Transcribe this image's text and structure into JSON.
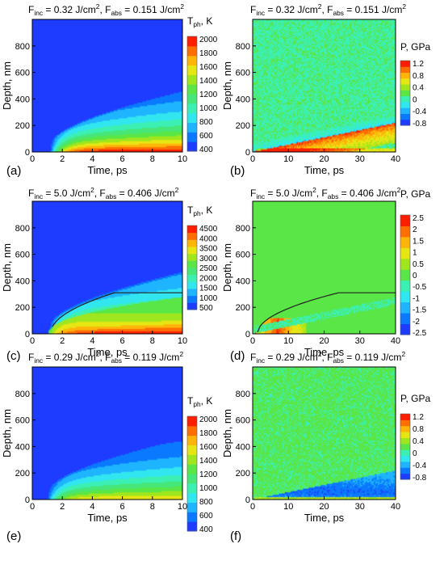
{
  "chart_data": [
    {
      "id": "a",
      "type": "heatmap",
      "panel_label": "(a)",
      "title": {
        "parts": [
          [
            "F",
            ""
          ],
          [
            "inc",
            "sub"
          ],
          [
            " = 0.32 J/cm",
            ""
          ],
          [
            "2",
            "sup"
          ],
          [
            ", F",
            ""
          ],
          [
            "abs",
            "sub"
          ],
          [
            " = 0.151 J/cm",
            ""
          ],
          [
            "2",
            "sup"
          ]
        ]
      },
      "xlabel": "Time, ps",
      "ylabel": "Depth, nm",
      "xlim": [
        0,
        10
      ],
      "ylim": [
        0,
        1000
      ],
      "xticks": [
        0,
        2,
        4,
        6,
        8,
        10
      ],
      "yticks": [
        0,
        200,
        400,
        600,
        800
      ],
      "colorbar": {
        "title": {
          "parts": [
            [
              "T",
              ""
            ],
            [
              "ph",
              "sub"
            ],
            [
              ", K",
              ""
            ]
          ]
        },
        "ticks": [
          "2000",
          "1800",
          "1600",
          "1400",
          "1200",
          "1000",
          "800",
          "600",
          "400"
        ],
        "colors": [
          "#1e3cff",
          "#0a78ff",
          "#1eb4ff",
          "#32e6f0",
          "#3cf0b4",
          "#46e678",
          "#5ae646",
          "#a0e61e",
          "#e6e614",
          "#ffb40a",
          "#ff6e00",
          "#ff1e00"
        ]
      },
      "field": {
        "kind": "temp",
        "t0": 1.1,
        "tmax": 2100,
        "melt_depth_nm": null
      },
      "color_range": [
        400,
        2100
      ]
    },
    {
      "id": "b",
      "type": "heatmap",
      "panel_label": "(b)",
      "title": {
        "parts": [
          [
            "F",
            ""
          ],
          [
            "inc",
            "sub"
          ],
          [
            " = 0.32 J/cm",
            ""
          ],
          [
            "2",
            "sup"
          ],
          [
            ", F",
            ""
          ],
          [
            "abs",
            "sub"
          ],
          [
            " = 0.151 J/cm",
            ""
          ],
          [
            "2",
            "sup"
          ]
        ]
      },
      "xlabel": "Time, ps",
      "ylabel": "Depth, nm",
      "xlim": [
        0,
        40
      ],
      "ylim": [
        0,
        1000
      ],
      "xticks": [
        0,
        10,
        20,
        30,
        40
      ],
      "yticks": [
        0,
        200,
        400,
        600,
        800
      ],
      "colorbar": {
        "title": {
          "parts": [
            [
              "P, GPa",
              ""
            ]
          ]
        },
        "ticks": [
          "1.2",
          "0.8",
          "0.4",
          "0",
          "-0.4",
          "-0.8"
        ],
        "colors": [
          "#1e3cff",
          "#0a78ff",
          "#1eb4ff",
          "#32e6f0",
          "#3cf0b4",
          "#5ae646",
          "#a0e61e",
          "#e6e614",
          "#ffb40a",
          "#ff6e00",
          "#ff1e00"
        ]
      },
      "field": {
        "kind": "press_low",
        "wave_speed_nm_per_ps": 5.5
      },
      "color_range": [
        -1.0,
        1.3
      ]
    },
    {
      "id": "c",
      "type": "heatmap",
      "panel_label": "(c)",
      "title": {
        "parts": [
          [
            "F",
            ""
          ],
          [
            "inc",
            "sub"
          ],
          [
            " = 5.0 J/cm",
            ""
          ],
          [
            "2",
            "sup"
          ],
          [
            ", F",
            ""
          ],
          [
            "abs",
            "sub"
          ],
          [
            " = 0.406 J/cm",
            ""
          ],
          [
            "2",
            "sup"
          ]
        ]
      },
      "xlabel": "Time, ps",
      "ylabel": "Depth, nm",
      "xlim": [
        0,
        10
      ],
      "ylim": [
        0,
        1000
      ],
      "xticks": [
        0,
        2,
        4,
        6,
        8,
        10
      ],
      "yticks": [
        0,
        200,
        400,
        600,
        800
      ],
      "colorbar": {
        "title": {
          "parts": [
            [
              "T",
              ""
            ],
            [
              "ph",
              "sub"
            ],
            [
              ", K",
              ""
            ]
          ]
        },
        "ticks": [
          "4500",
          "4000",
          "3500",
          "3000",
          "2500",
          "2000",
          "1500",
          "1000",
          "500"
        ],
        "colors": [
          "#1e3cff",
          "#0a78ff",
          "#1eb4ff",
          "#32e6f0",
          "#3cf0b4",
          "#46e678",
          "#5ae646",
          "#a0e61e",
          "#e6e614",
          "#ffb40a",
          "#ff6e00",
          "#ff1e00"
        ]
      },
      "field": {
        "kind": "temp",
        "t0": 1.1,
        "tmax": 4800,
        "melt_depth_nm": 310
      },
      "color_range": [
        300,
        4800
      ]
    },
    {
      "id": "d",
      "type": "heatmap",
      "panel_label": "(d)",
      "title": {
        "parts": [
          [
            "F",
            ""
          ],
          [
            "inc",
            "sub"
          ],
          [
            " = 5.0 J/cm",
            ""
          ],
          [
            "2",
            "sup"
          ],
          [
            ", F",
            ""
          ],
          [
            "abs",
            "sub"
          ],
          [
            " = 0.406 J/cm",
            ""
          ],
          [
            "2",
            "sup"
          ]
        ]
      },
      "xlabel": "Time, ps",
      "ylabel": "Depth, nm",
      "xlim": [
        0,
        40
      ],
      "ylim": [
        0,
        1000
      ],
      "xticks": [
        0,
        10,
        20,
        30,
        40
      ],
      "yticks": [
        0,
        200,
        400,
        600,
        800
      ],
      "colorbar": {
        "title": {
          "parts": [
            [
              "P, GPa",
              ""
            ]
          ]
        },
        "ticks": [
          "2.5",
          "2",
          "1.5",
          "1",
          "0.5",
          "0",
          "-0.5",
          "-1",
          "-1.5",
          "-2",
          "-2.5"
        ],
        "colors": [
          "#1e3cff",
          "#0a78ff",
          "#1eb4ff",
          "#32e6f0",
          "#3cf0b4",
          "#5ae646",
          "#a0e61e",
          "#e6e614",
          "#ffb40a",
          "#ff6e00",
          "#ff1e00"
        ]
      },
      "field": {
        "kind": "press_high",
        "wave_speed_nm_per_ps": 5.5,
        "melt_depth_nm": 310
      },
      "color_range": [
        -2.8,
        2.8
      ]
    },
    {
      "id": "e",
      "type": "heatmap",
      "panel_label": "(e)",
      "title": {
        "parts": [
          [
            "F",
            ""
          ],
          [
            "inc",
            "sub"
          ],
          [
            " = 0.29 J/cm",
            ""
          ],
          [
            "2",
            "sup"
          ],
          [
            ", F",
            ""
          ],
          [
            "abs",
            "sub"
          ],
          [
            " = 0.119 J/cm",
            ""
          ],
          [
            "2",
            "sup"
          ]
        ]
      },
      "xlabel": "Time, ps",
      "ylabel": "Depth, nm",
      "xlim": [
        0,
        10
      ],
      "ylim": [
        0,
        1000
      ],
      "xticks": [
        0,
        2,
        4,
        6,
        8,
        10
      ],
      "yticks": [
        0,
        200,
        400,
        600,
        800
      ],
      "colorbar": {
        "title": {
          "parts": [
            [
              "T",
              ""
            ],
            [
              "ph",
              "sub"
            ],
            [
              ", K",
              ""
            ]
          ]
        },
        "ticks": [
          "2000",
          "1800",
          "1600",
          "1400",
          "1200",
          "1000",
          "800",
          "600",
          "400"
        ],
        "colors": [
          "#1e3cff",
          "#0a78ff",
          "#1eb4ff",
          "#32e6f0",
          "#3cf0b4",
          "#46e678",
          "#5ae646",
          "#a0e61e",
          "#e6e614",
          "#ffb40a",
          "#ff6e00",
          "#ff1e00"
        ]
      },
      "field": {
        "kind": "temp",
        "t0": 0.9,
        "tmax": 1700,
        "melt_depth_nm": null
      },
      "color_range": [
        400,
        2100
      ]
    },
    {
      "id": "f",
      "type": "heatmap",
      "panel_label": "(f)",
      "title": {
        "parts": [
          [
            "F",
            ""
          ],
          [
            "inc",
            "sub"
          ],
          [
            " = 0.29 J/cm",
            ""
          ],
          [
            "2",
            "sup"
          ],
          [
            ", F",
            ""
          ],
          [
            "abs",
            "sub"
          ],
          [
            " = 0.119 J/cm",
            ""
          ],
          [
            "2",
            "sup"
          ]
        ]
      },
      "xlabel": "Time, ps",
      "ylabel": "Depth, nm",
      "xlim": [
        0,
        40
      ],
      "ylim": [
        0,
        1000
      ],
      "xticks": [
        0,
        10,
        20,
        30,
        40
      ],
      "yticks": [
        0,
        200,
        400,
        600,
        800
      ],
      "colorbar": {
        "title": {
          "parts": [
            [
              "P, GPa",
              ""
            ]
          ]
        },
        "ticks": [
          "1.2",
          "0.8",
          "0.4",
          "0",
          "-0.4",
          "-0.8"
        ],
        "colors": [
          "#1e3cff",
          "#0a78ff",
          "#1eb4ff",
          "#32e6f0",
          "#3cf0b4",
          "#5ae646",
          "#a0e61e",
          "#e6e614",
          "#ffb40a",
          "#ff6e00",
          "#ff1e00"
        ]
      },
      "field": {
        "kind": "press_neg",
        "wave_speed_nm_per_ps": 5.5
      },
      "color_range": [
        -1.0,
        1.3
      ]
    }
  ]
}
